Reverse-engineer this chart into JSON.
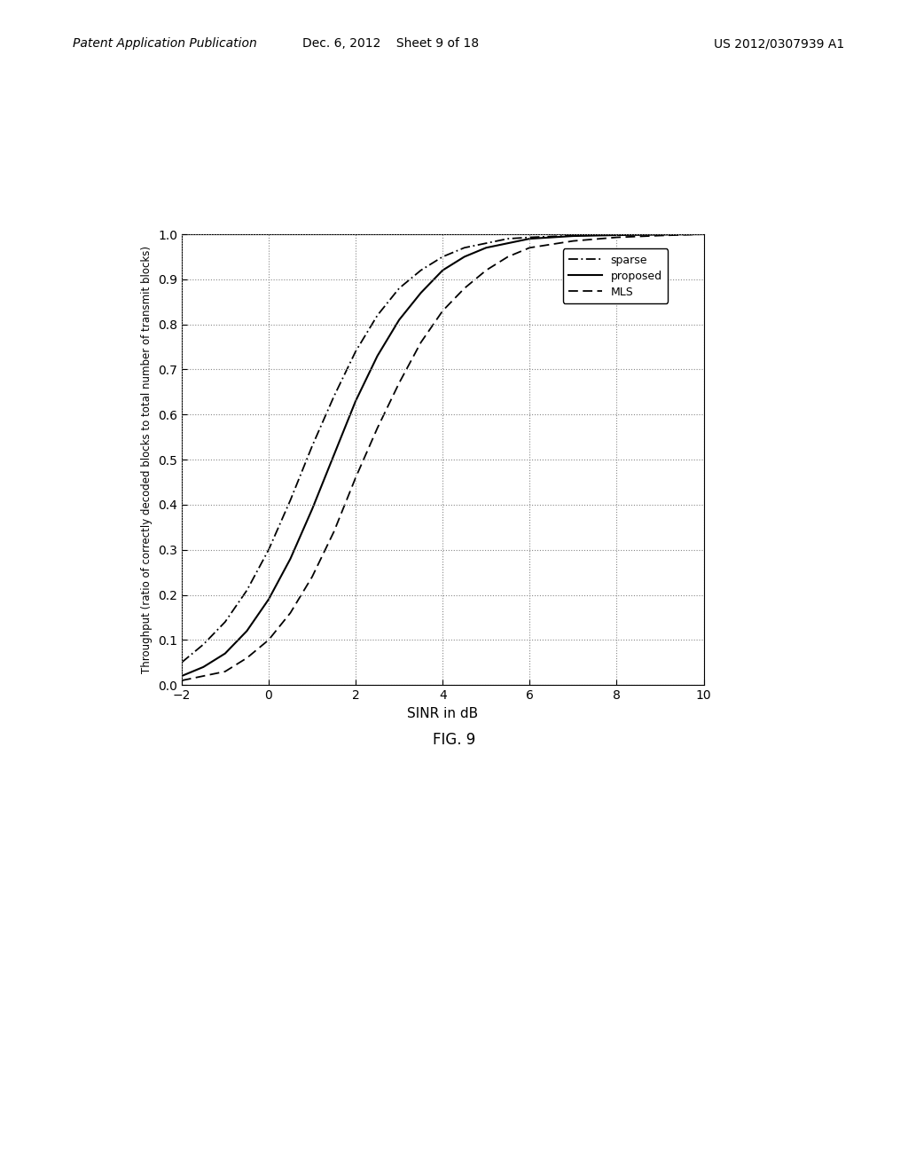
{
  "title": "",
  "xlabel": "SINR in dB",
  "ylabel": "Throughput (ratio of correctly decoded blocks to total number of transmit blocks)",
  "xlim": [
    -2,
    10
  ],
  "ylim": [
    0,
    1.0
  ],
  "xticks": [
    -2,
    0,
    2,
    4,
    6,
    8,
    10
  ],
  "yticks": [
    0,
    0.1,
    0.2,
    0.3,
    0.4,
    0.5,
    0.6,
    0.7,
    0.8,
    0.9,
    1
  ],
  "figure_caption": "FIG. 9",
  "header_left": "Patent Application Publication",
  "header_center": "Dec. 6, 2012    Sheet 9 of 18",
  "header_right": "US 2012/0307939 A1",
  "background_color": "#ffffff",
  "legend_entries": [
    "sparse",
    "proposed",
    "MLS"
  ],
  "sparse_x": [
    -2,
    -1.5,
    -1,
    -0.5,
    0,
    0.5,
    1.0,
    1.5,
    2.0,
    2.5,
    3.0,
    3.5,
    4.0,
    4.5,
    5.0,
    5.5,
    6.0,
    7.0,
    8.0,
    9.0,
    10.0
  ],
  "sparse_y": [
    0.05,
    0.09,
    0.14,
    0.21,
    0.3,
    0.41,
    0.53,
    0.64,
    0.74,
    0.82,
    0.88,
    0.92,
    0.95,
    0.97,
    0.98,
    0.99,
    0.993,
    0.997,
    0.999,
    1.0,
    1.0
  ],
  "proposed_x": [
    -2,
    -1.5,
    -1,
    -0.5,
    0,
    0.5,
    1.0,
    1.5,
    2.0,
    2.5,
    3.0,
    3.5,
    4.0,
    4.5,
    5.0,
    5.5,
    6.0,
    7.0,
    8.0,
    9.0,
    10.0
  ],
  "proposed_y": [
    0.02,
    0.04,
    0.07,
    0.12,
    0.19,
    0.28,
    0.39,
    0.51,
    0.63,
    0.73,
    0.81,
    0.87,
    0.92,
    0.95,
    0.97,
    0.98,
    0.99,
    0.996,
    0.998,
    0.999,
    1.0
  ],
  "mls_x": [
    -2,
    -1.5,
    -1,
    -0.5,
    0,
    0.5,
    1.0,
    1.5,
    2.0,
    2.5,
    3.0,
    3.5,
    4.0,
    4.5,
    5.0,
    5.5,
    6.0,
    7.0,
    8.0,
    9.0,
    10.0
  ],
  "mls_y": [
    0.01,
    0.02,
    0.03,
    0.06,
    0.1,
    0.16,
    0.24,
    0.34,
    0.46,
    0.57,
    0.67,
    0.76,
    0.83,
    0.88,
    0.92,
    0.95,
    0.97,
    0.985,
    0.993,
    0.997,
    1.0
  ]
}
